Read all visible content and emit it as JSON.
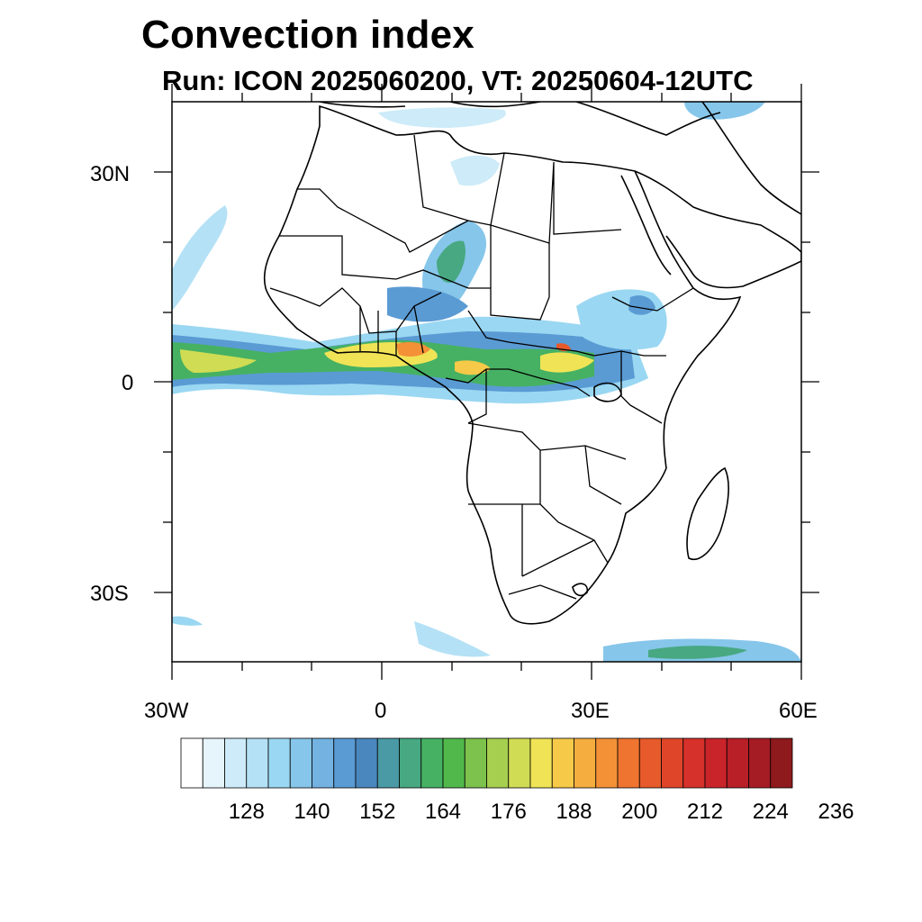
{
  "title": "Convection index",
  "subtitle": "Run: ICON 2025060200,  VT: 20250604-12UTC",
  "map": {
    "region": "Africa",
    "projection": "cylindrical equidistant",
    "lon_range": [
      -30,
      60
    ],
    "lat_range": [
      -40,
      40
    ],
    "lat_tick_labels": [
      "30N",
      "0",
      "30S"
    ],
    "lon_tick_labels": [
      "30W",
      "0",
      "30E",
      "60E"
    ],
    "features": [
      "coastlines",
      "national borders",
      "convection index shading"
    ],
    "fill_regions": [
      {
        "name": "ITCZ band (Atlantic to Central Africa)",
        "lon": [
          -30,
          40
        ],
        "lat": [
          -3,
          7
        ],
        "max_value": 212
      },
      {
        "name": "Sahel cells (Niger/Chad)",
        "lon": [
          5,
          15
        ],
        "lat": [
          10,
          22
        ],
        "max_value": 188
      },
      {
        "name": "Ethiopian highlands",
        "lon": [
          33,
          43
        ],
        "lat": [
          5,
          14
        ],
        "max_value": 164
      },
      {
        "name": "Mediterranean/North",
        "lon": [
          -5,
          45
        ],
        "lat": [
          32,
          40
        ],
        "max_value": 164
      },
      {
        "name": "Southern Ocean bands",
        "lon": [
          -30,
          60
        ],
        "lat": [
          -40,
          -33
        ],
        "max_value": 164
      }
    ]
  },
  "colorbar": {
    "labels": [
      "128",
      "140",
      "152",
      "164",
      "176",
      "188",
      "200",
      "212",
      "224",
      "236"
    ],
    "colors": [
      "#ffffff",
      "#e6f4fb",
      "#cdebf8",
      "#b4e1f5",
      "#9ad7f2",
      "#86c6ea",
      "#73b2e1",
      "#5a9bd4",
      "#4a87bf",
      "#4a9aa6",
      "#47a882",
      "#46b163",
      "#51b84b",
      "#7cc24c",
      "#a6ce4f",
      "#d0dc53",
      "#f0e456",
      "#f6c949",
      "#f5ad3f",
      "#f49137",
      "#ef7430",
      "#e65a2b",
      "#df4529",
      "#d6312a",
      "#c9242a",
      "#b81f27",
      "#a51c24",
      "#8e1a1d"
    ]
  }
}
